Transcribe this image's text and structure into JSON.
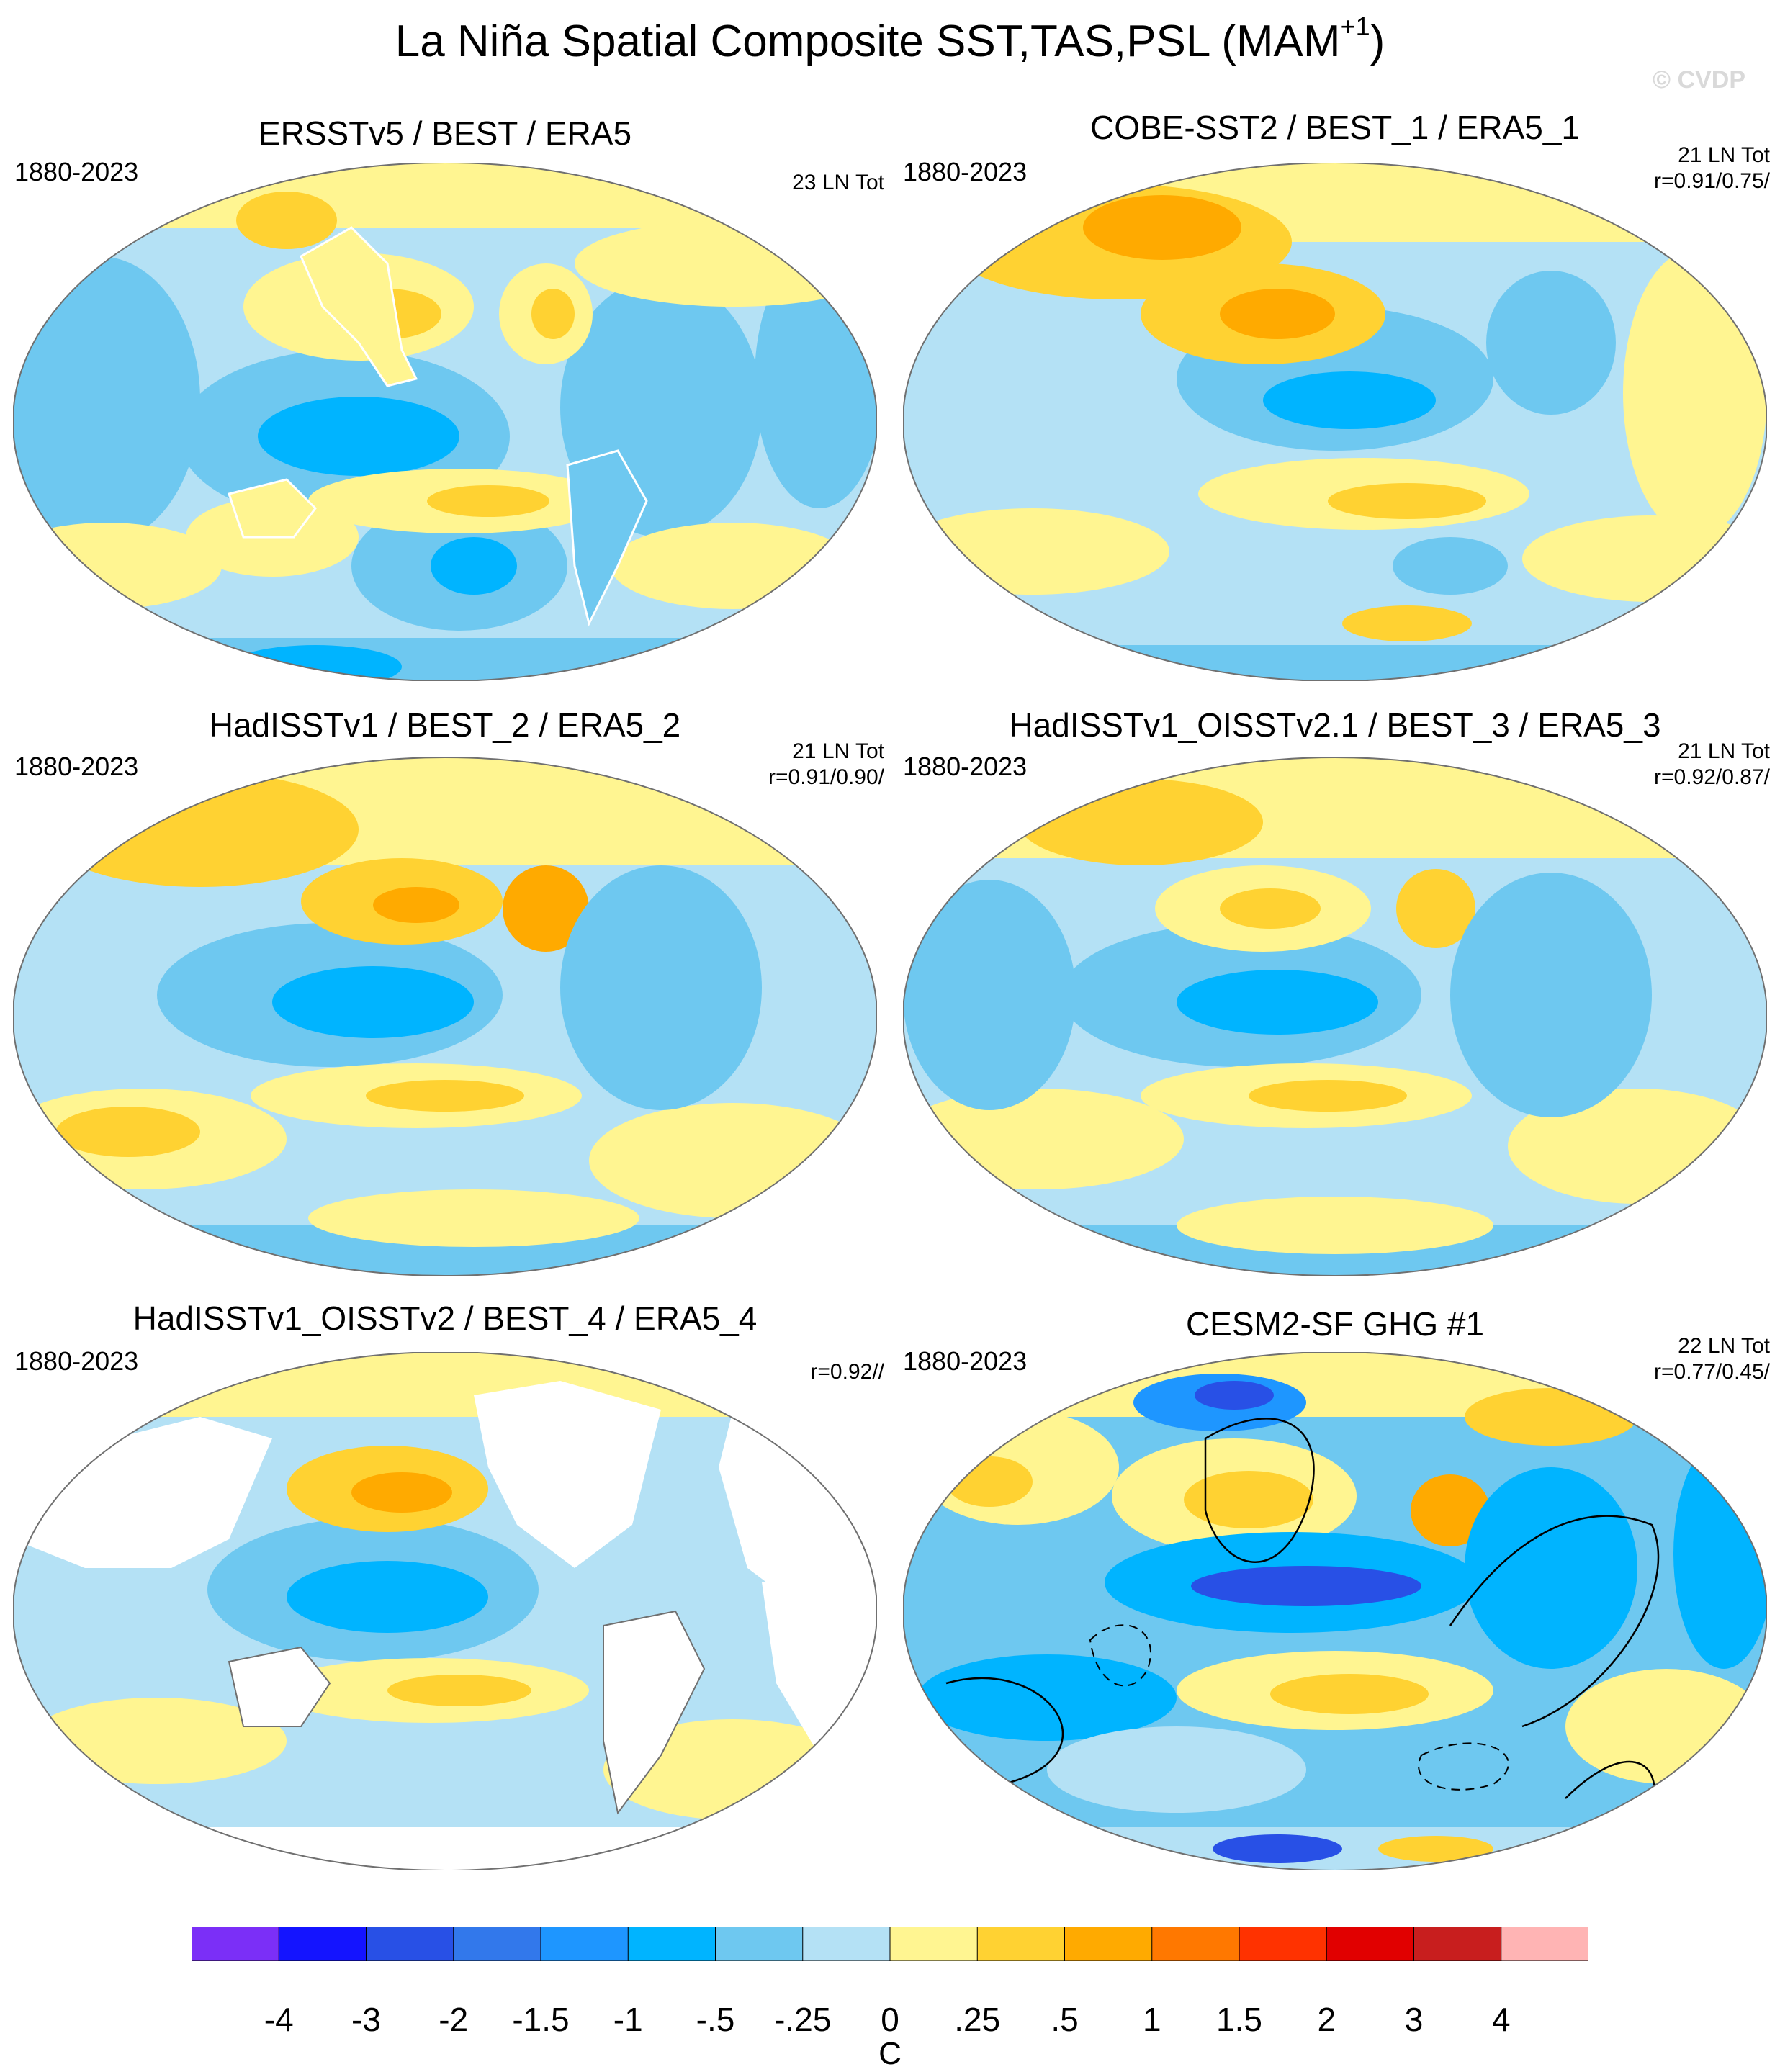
{
  "title": {
    "main": "La Niña Spatial Composite SST,TAS,PSL (MAM",
    "sup": "+1",
    "close": ")"
  },
  "watermark": "© CVDP",
  "panels": [
    {
      "title": "ERSSTv5 / BEST / ERA5",
      "years": "1880-2023",
      "stats": [
        "23 LN Tot"
      ]
    },
    {
      "title": "COBE-SST2 / BEST_1 / ERA5_1",
      "years": "1880-2023",
      "stats": [
        "21 LN Tot",
        "r=0.91/0.75/"
      ]
    },
    {
      "title": "HadISSTv1 / BEST_2 / ERA5_2",
      "years": "1880-2023",
      "stats": [
        "21 LN Tot",
        "r=0.91/0.90/"
      ]
    },
    {
      "title": "HadISSTv1_OISSTv2.1 / BEST_3 / ERA5_3",
      "years": "1880-2023",
      "stats": [
        "21 LN Tot",
        "r=0.92/0.87/"
      ]
    },
    {
      "title": "HadISSTv1_OISSTv2 / BEST_4 / ERA5_4",
      "years": "1880-2023",
      "stats": [
        "r=0.92//"
      ]
    },
    {
      "title": "CESM2-SF GHG #1",
      "years": "1880-2023",
      "stats": [
        "22 LN Tot",
        "r=0.77/0.45/"
      ]
    }
  ],
  "colorbar": {
    "colors": [
      "#7b2ff7",
      "#1414ff",
      "#2850e6",
      "#3278eb",
      "#1e96ff",
      "#00b4ff",
      "#6ec8f0",
      "#b4e1f5",
      "#fff591",
      "#ffd232",
      "#ffaa00",
      "#ff7800",
      "#ff3200",
      "#e10000",
      "#c81e1e",
      "#ffb4b4"
    ],
    "labels": [
      "-4",
      "-3",
      "-2",
      "-1.5",
      "-1",
      "-.5",
      "-.25",
      "0",
      ".25",
      ".5",
      "1",
      "1.5",
      "2",
      "3",
      "4"
    ],
    "units": "C"
  },
  "palette": {
    "ocean_base": "#b4e1f5",
    "land_white": "#ffffff",
    "coast": "#707070"
  }
}
